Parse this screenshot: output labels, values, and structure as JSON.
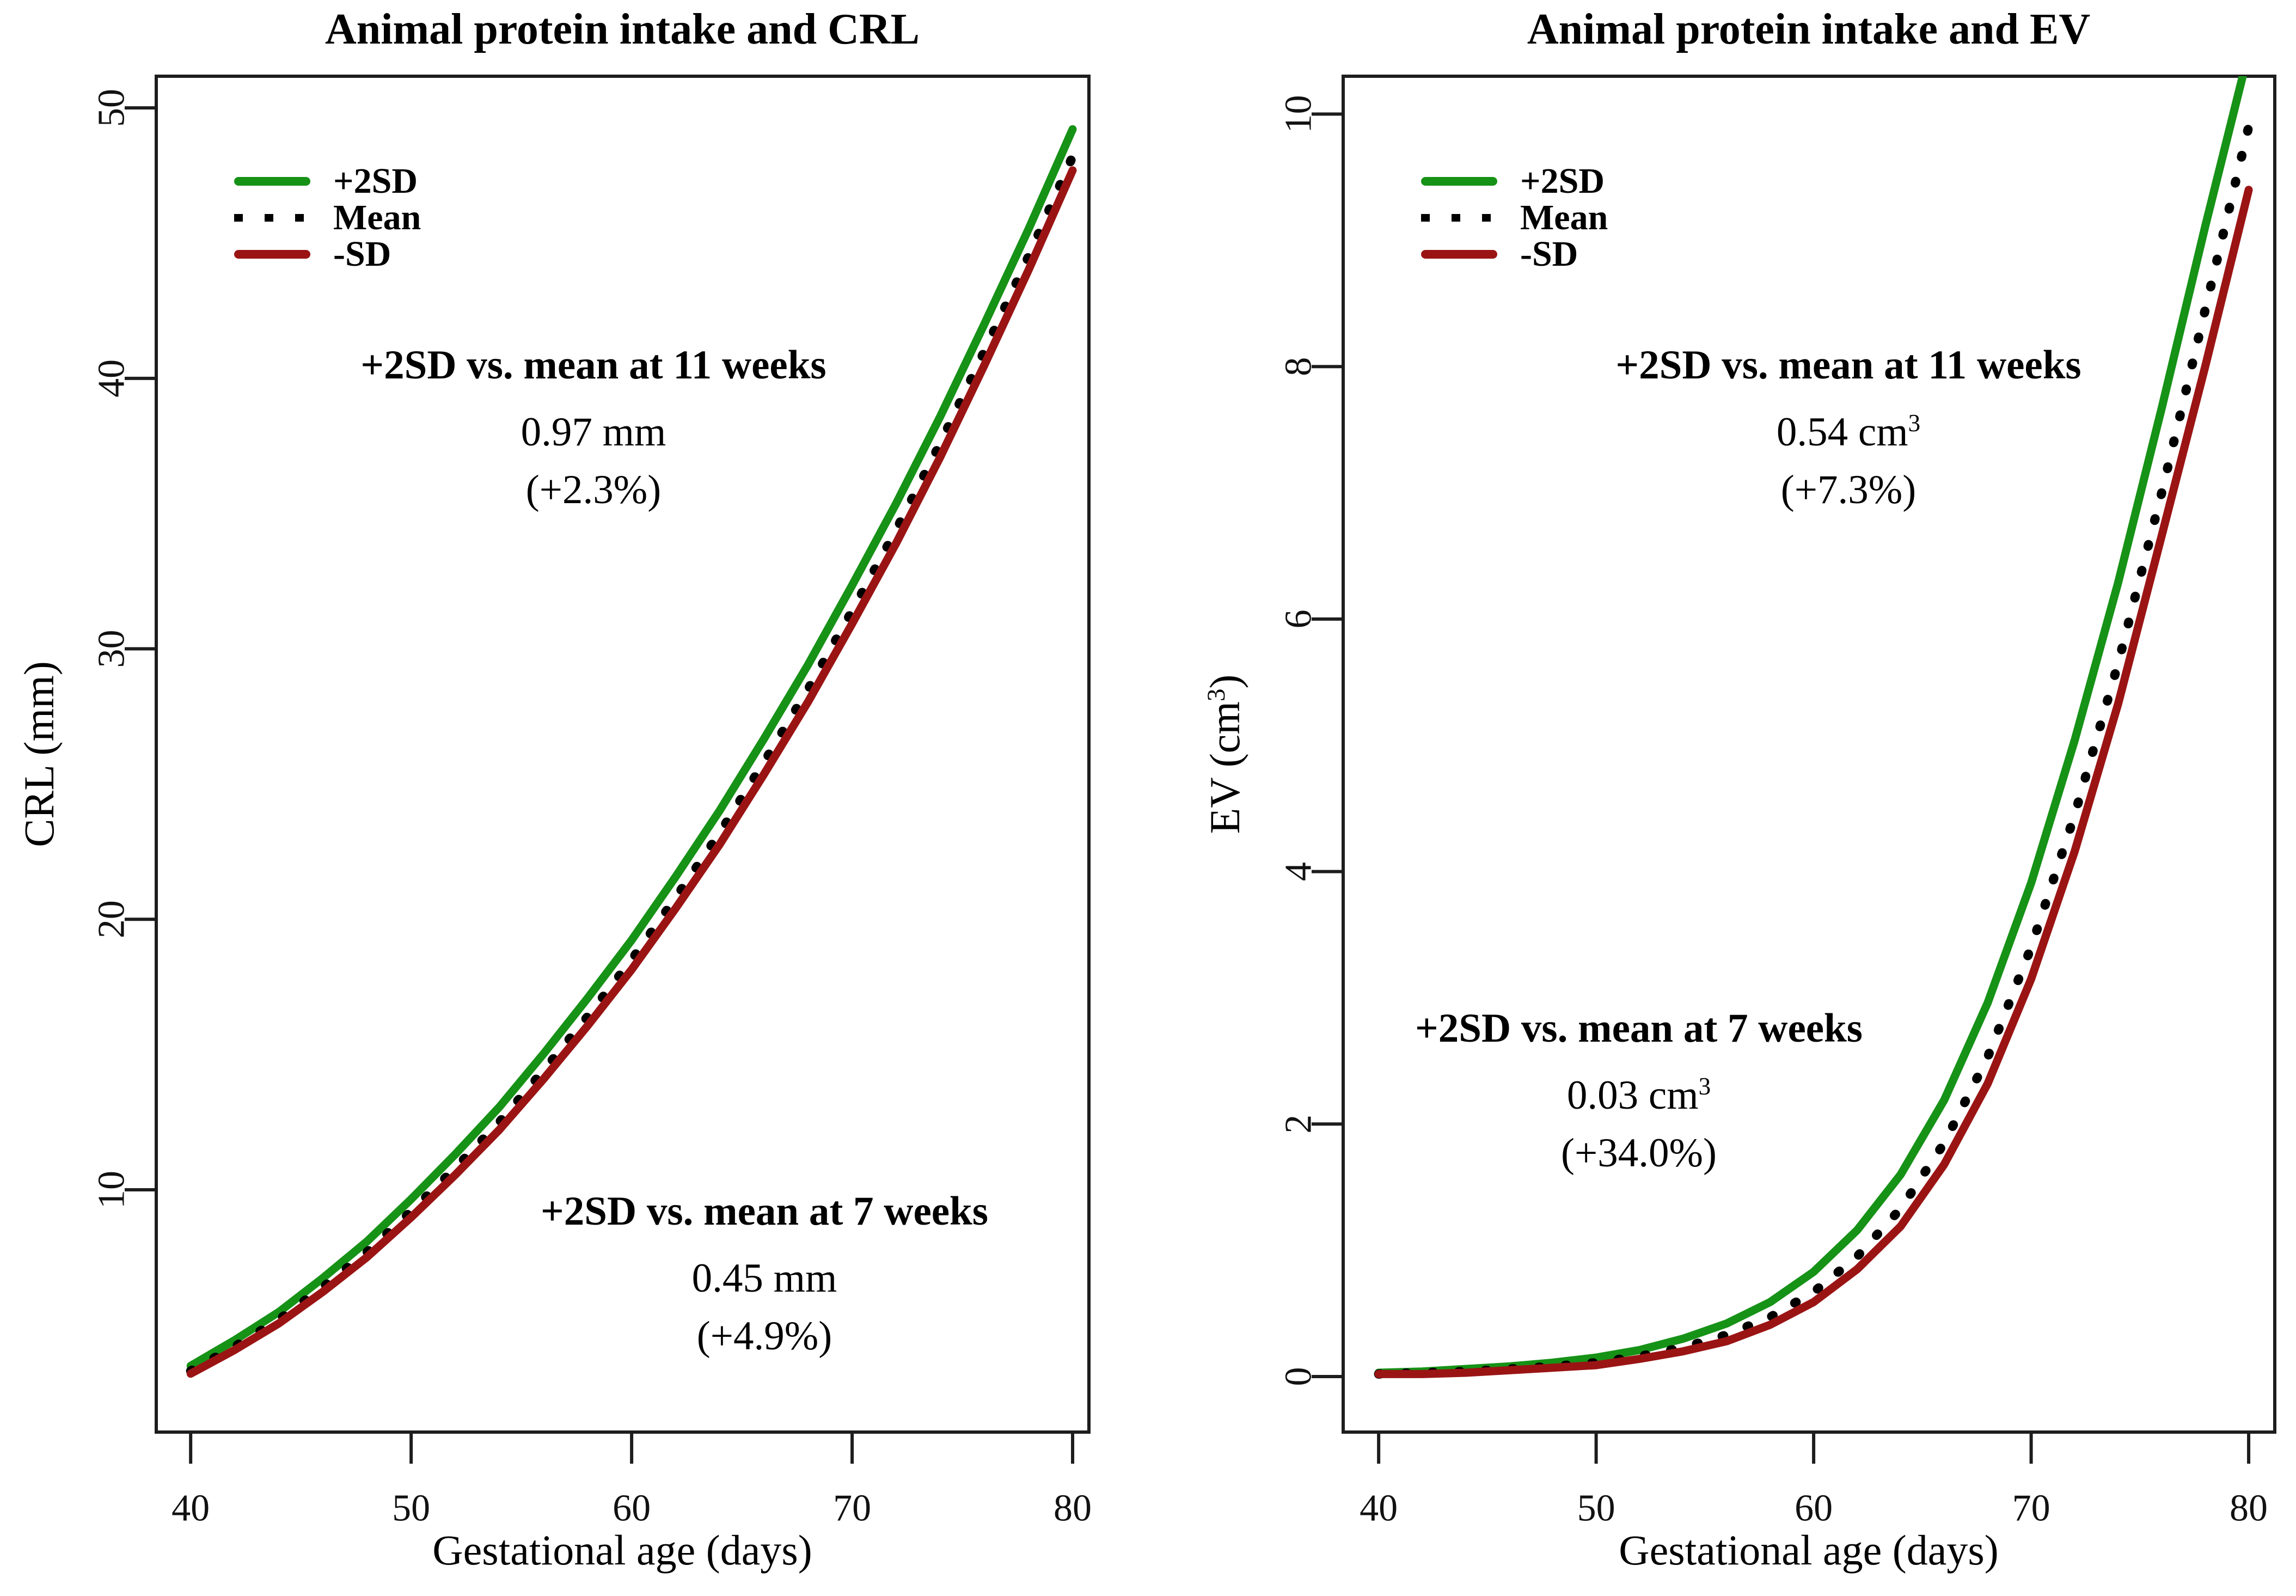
{
  "chart_data": [
    {
      "type": "line",
      "title": "Animal protein intake and CRL",
      "xlabel": "Gestational age (days)",
      "ylabel": {
        "pre": "CRL (mm)",
        "sup": "",
        "post": ""
      },
      "xlim": [
        38.44,
        80.74
      ],
      "ylim": [
        1.04,
        51.17
      ],
      "x_ticks": [
        40,
        50,
        60,
        70,
        80
      ],
      "y_ticks": [
        10,
        20,
        30,
        40,
        50
      ],
      "grid": false,
      "legend_position": "top-left",
      "axis_color": "#1d1d1d",
      "x": [
        40,
        42,
        44,
        46,
        48,
        50,
        52,
        54,
        56,
        58,
        60,
        62,
        64,
        66,
        68,
        70,
        72,
        74,
        76,
        78,
        80
      ],
      "series": [
        {
          "name": "+2SD",
          "color": "#169216",
          "style": "solid",
          "values": [
            3.49,
            4.44,
            5.48,
            6.74,
            8.09,
            9.65,
            11.31,
            13.06,
            15.02,
            17.08,
            19.23,
            21.58,
            24.03,
            26.67,
            29.41,
            32.35,
            35.38,
            38.6,
            42.01,
            45.51,
            49.21
          ]
        },
        {
          "name": "Mean",
          "color": "#000000",
          "style": "dotted",
          "values": [
            3.3,
            4.2,
            5.2,
            6.4,
            7.7,
            9.2,
            10.8,
            12.5,
            14.4,
            16.4,
            18.5,
            20.8,
            23.2,
            25.8,
            28.5,
            31.4,
            34.4,
            37.6,
            41.0,
            44.5,
            48.2
          ]
        },
        {
          "name": "-SD",
          "color": "#9b1414",
          "style": "solid",
          "values": [
            3.2,
            4.08,
            5.06,
            6.23,
            7.51,
            8.98,
            10.55,
            12.22,
            14.09,
            16.06,
            18.14,
            20.41,
            22.78,
            25.36,
            28.04,
            30.93,
            33.91,
            37.1,
            40.49,
            44.0,
            47.69
          ]
        }
      ],
      "annotations": [
        {
          "lines": [
            {
              "text": "+2SD vs. mean at 11 weeks",
              "bold": true
            },
            {
              "text": "0.97 mm",
              "sup": ""
            },
            {
              "text": "(+2.3%)",
              "sup": ""
            }
          ]
        },
        {
          "lines": [
            {
              "text": "+2SD vs. mean at 7 weeks",
              "bold": true
            },
            {
              "text": "0.45 mm",
              "sup": ""
            },
            {
              "text": "(+4.9%)",
              "sup": ""
            }
          ]
        }
      ]
    },
    {
      "type": "line",
      "title": "Animal protein intake and EV",
      "xlabel": "Gestational age (days)",
      "ylabel": {
        "pre": "EV (cm",
        "sup": "3",
        "post": ")"
      },
      "xlim": [
        38.37,
        81.2
      ],
      "ylim": [
        -0.44,
        10.3
      ],
      "x_ticks": [
        40,
        50,
        60,
        70,
        80
      ],
      "y_ticks": [
        0,
        2,
        4,
        6,
        8,
        10
      ],
      "grid": false,
      "legend_position": "top-left",
      "axis_color": "#1d1d1d",
      "x": [
        40,
        42,
        44,
        46,
        48,
        50,
        52,
        54,
        56,
        58,
        60,
        62,
        64,
        66,
        68,
        70,
        72,
        74,
        76,
        78,
        80
      ],
      "series": [
        {
          "name": "+2SD",
          "color": "#169216",
          "style": "solid",
          "values": [
            0.03,
            0.04,
            0.06,
            0.08,
            0.11,
            0.15,
            0.21,
            0.3,
            0.42,
            0.59,
            0.83,
            1.16,
            1.6,
            2.19,
            2.96,
            3.91,
            5.04,
            6.29,
            7.67,
            9.11,
            10.49
          ]
        },
        {
          "name": "Mean",
          "color": "#000000",
          "style": "dotted",
          "values": [
            0.02,
            0.03,
            0.04,
            0.06,
            0.08,
            0.11,
            0.16,
            0.23,
            0.33,
            0.47,
            0.67,
            0.95,
            1.33,
            1.85,
            2.53,
            3.4,
            4.45,
            5.65,
            7.0,
            8.45,
            9.9
          ]
        },
        {
          "name": "-SD",
          "color": "#9b1414",
          "style": "solid",
          "values": [
            0.02,
            0.02,
            0.03,
            0.05,
            0.07,
            0.09,
            0.14,
            0.2,
            0.28,
            0.41,
            0.59,
            0.85,
            1.19,
            1.68,
            2.32,
            3.15,
            4.16,
            5.33,
            6.66,
            8.0,
            9.4
          ]
        }
      ],
      "annotations": [
        {
          "lines": [
            {
              "text": "+2SD vs. mean at 11 weeks",
              "bold": true
            },
            {
              "text": "0.54 cm",
              "sup": "3"
            },
            {
              "text": "(+7.3%)",
              "sup": ""
            }
          ]
        },
        {
          "lines": [
            {
              "text": "+2SD vs. mean at 7 weeks",
              "bold": true
            },
            {
              "text": "0.03 cm",
              "sup": "3"
            },
            {
              "text": "(+34.0%)",
              "sup": ""
            }
          ]
        }
      ]
    }
  ]
}
